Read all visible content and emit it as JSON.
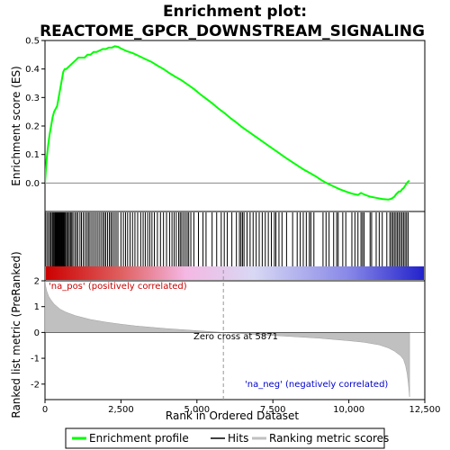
{
  "chart_data": {
    "type": "line",
    "title_line1": "Enrichment plot:",
    "title_line2": "REACTOME_GPCR_DOWNSTREAM_SIGNALING",
    "top_panel": {
      "ylabel": "Enrichment score (ES)",
      "ylim": [
        -0.1,
        0.5
      ],
      "yticks": [
        0.0,
        0.1,
        0.2,
        0.3,
        0.4,
        0.5
      ],
      "ytick_labels": [
        "0.0",
        "0.1",
        "0.2",
        "0.3",
        "0.4",
        "0.5"
      ],
      "series": [
        {
          "name": "Enrichment profile",
          "color": "#00ff00",
          "x": [
            0,
            50,
            100,
            150,
            200,
            250,
            300,
            350,
            400,
            450,
            500,
            550,
            600,
            650,
            700,
            800,
            900,
            1000,
            1100,
            1200,
            1300,
            1400,
            1500,
            1600,
            1700,
            1800,
            1900,
            2000,
            2100,
            2200,
            2300,
            2400,
            2500,
            2700,
            2900,
            3100,
            3300,
            3500,
            3700,
            3900,
            4100,
            4300,
            4500,
            4700,
            4900,
            5100,
            5300,
            5500,
            5700,
            5900,
            6100,
            6300,
            6500,
            6700,
            6900,
            7100,
            7300,
            7500,
            7700,
            7900,
            8100,
            8300,
            8500,
            8700,
            8900,
            9100,
            9300,
            9500,
            9700,
            9900,
            10100,
            10300,
            10400,
            10500,
            10700,
            10900,
            11100,
            11300,
            11400,
            11500,
            11550,
            11600,
            11650,
            11700,
            11750,
            11800,
            11850,
            11900,
            11950,
            12000
          ],
          "y": [
            0.0,
            0.08,
            0.13,
            0.17,
            0.2,
            0.23,
            0.25,
            0.26,
            0.27,
            0.3,
            0.33,
            0.36,
            0.39,
            0.4,
            0.4,
            0.41,
            0.42,
            0.43,
            0.44,
            0.44,
            0.44,
            0.45,
            0.45,
            0.46,
            0.46,
            0.465,
            0.47,
            0.47,
            0.475,
            0.475,
            0.48,
            0.478,
            0.472,
            0.462,
            0.455,
            0.445,
            0.435,
            0.425,
            0.412,
            0.4,
            0.385,
            0.372,
            0.36,
            0.345,
            0.33,
            0.312,
            0.296,
            0.28,
            0.262,
            0.246,
            0.228,
            0.212,
            0.195,
            0.18,
            0.165,
            0.15,
            0.135,
            0.12,
            0.105,
            0.09,
            0.076,
            0.062,
            0.048,
            0.036,
            0.024,
            0.01,
            -0.002,
            -0.012,
            -0.022,
            -0.03,
            -0.037,
            -0.042,
            -0.035,
            -0.04,
            -0.048,
            -0.052,
            -0.056,
            -0.058,
            -0.055,
            -0.048,
            -0.04,
            -0.035,
            -0.03,
            -0.03,
            -0.022,
            -0.018,
            -0.01,
            -0.002,
            0.005,
            0.008
          ]
        }
      ]
    },
    "middle_panel": {
      "hits_label": "Hits",
      "hit_color": "#000000",
      "hit_positions": [
        10,
        60,
        110,
        160,
        200,
        240,
        270,
        300,
        330,
        350,
        370,
        400,
        420,
        440,
        460,
        480,
        500,
        520,
        540,
        560,
        580,
        600,
        620,
        650,
        680,
        720,
        760,
        800,
        840,
        880,
        920,
        980,
        1030,
        1080,
        1150,
        1200,
        1260,
        1320,
        1380,
        1430,
        1480,
        1540,
        1600,
        1660,
        1720,
        1780,
        1840,
        1900,
        1950,
        2000,
        2060,
        2120,
        2170,
        2220,
        2280,
        2340,
        2400,
        2500,
        2580,
        2650,
        2720,
        2800,
        2880,
        2960,
        3050,
        3150,
        3230,
        3300,
        3380,
        3450,
        3520,
        3600,
        3700,
        3800,
        3900,
        4000,
        4100,
        4180,
        4250,
        4320,
        4400,
        4450,
        4500,
        4560,
        4620,
        4680,
        4730,
        4800,
        4900,
        5050,
        5200,
        5300,
        5500,
        5650,
        5800,
        5900,
        6000,
        6150,
        6300,
        6400,
        6450,
        6500,
        6550,
        6650,
        6750,
        6850,
        6950,
        7050,
        7150,
        7250,
        7350,
        7450,
        7550,
        7600,
        7700,
        7800,
        7950,
        8150,
        8300,
        8400,
        8500,
        8600,
        8700,
        8750,
        8850,
        9150,
        9250,
        9350,
        9500,
        9600,
        9650,
        9800,
        9900,
        10100,
        10200,
        10300,
        10400,
        10450,
        10500,
        10700,
        10750,
        10900,
        11000,
        11100,
        11250,
        11350,
        11400,
        11450,
        11500,
        11550,
        11600,
        11650,
        11700,
        11750,
        11800,
        11850,
        11900,
        11950
      ],
      "colorbar_gradient": [
        "#cc0000",
        "#e06060",
        "#f4b8e4",
        "#d8d8f4",
        "#8888e8",
        "#2222cc"
      ]
    },
    "bottom_panel": {
      "ylabel": "Ranked list metric (PreRanked)",
      "ylim": [
        -2.6,
        2.0
      ],
      "yticks": [
        -2,
        -1,
        0,
        1,
        2
      ],
      "ytick_labels": [
        "-2",
        "-1",
        "0",
        "1",
        "2"
      ],
      "fill_color": "#c0c0c0",
      "metric_x": [
        0,
        20,
        60,
        120,
        200,
        300,
        400,
        500,
        700,
        1000,
        1500,
        2000,
        2500,
        3000,
        4000,
        5000,
        5871,
        7000,
        8000,
        9000,
        10000,
        10500,
        11000,
        11300,
        11500,
        11700,
        11800,
        11870,
        11920,
        11960,
        12000
      ],
      "metric_y": [
        2.0,
        1.8,
        1.6,
        1.4,
        1.25,
        1.1,
        1.0,
        0.9,
        0.78,
        0.65,
        0.5,
        0.4,
        0.32,
        0.25,
        0.15,
        0.07,
        0.0,
        -0.08,
        -0.15,
        -0.22,
        -0.32,
        -0.38,
        -0.48,
        -0.6,
        -0.72,
        -0.9,
        -1.05,
        -1.3,
        -1.6,
        -2.0,
        -2.5
      ],
      "zero_cross_value": 5871,
      "zero_cross_label": "Zero cross at 5871",
      "pos_label": "'na_pos' (positively correlated)",
      "pos_color": "#cc0000",
      "neg_label": "'na_neg' (negatively correlated)",
      "neg_color": "#0000cc"
    },
    "xaxis": {
      "xlabel": "Rank in Ordered Dataset",
      "xlim": [
        0,
        12500
      ],
      "xticks": [
        0,
        2500,
        5000,
        7500,
        10000,
        12500
      ],
      "xtick_labels": [
        "0",
        "2,500",
        "5,000",
        "7,500",
        "10,000",
        "12,500"
      ]
    },
    "legend": {
      "placement": "bottom",
      "items": [
        {
          "label": "Enrichment profile",
          "color": "#00ff00"
        },
        {
          "label": "Hits",
          "color": "#000000"
        },
        {
          "label": "Ranking metric scores",
          "color": "#c0c0c0"
        }
      ]
    }
  }
}
